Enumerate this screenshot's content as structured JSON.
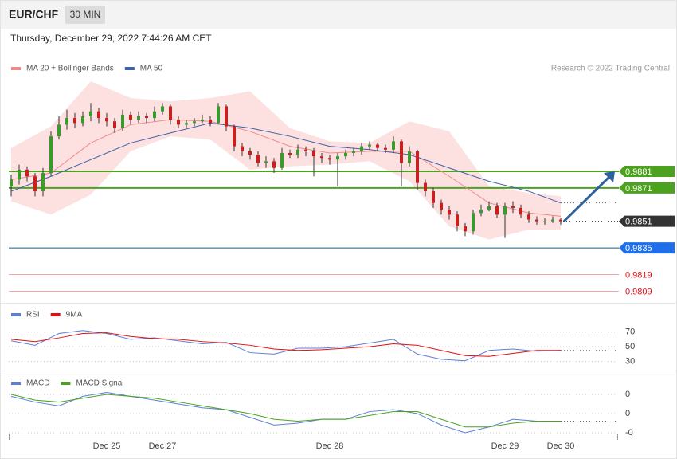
{
  "header": {
    "symbol": "EUR/CHF",
    "interval": "30 MIN",
    "timestamp": "Thursday, December 29, 2022 7:44:26 AM CET"
  },
  "chart_data": [
    {
      "type": "candlestick",
      "source": "Research © 2022 Trading Central",
      "categories": [
        null,
        null,
        null,
        null,
        null,
        null,
        null,
        null,
        null,
        null,
        null,
        null,
        "Dec 25",
        null,
        null,
        null,
        null,
        null,
        null,
        "Dec 27",
        null,
        null,
        null,
        null,
        null,
        null,
        null,
        null,
        null,
        null,
        null,
        null,
        null,
        null,
        null,
        null,
        null,
        null,
        null,
        null,
        "Dec 28",
        null,
        null,
        null,
        null,
        null,
        null,
        null,
        null,
        null,
        null,
        null,
        null,
        null,
        null,
        null,
        null,
        null,
        null,
        null,
        null,
        null,
        "Dec 29",
        null,
        null,
        null,
        null,
        null,
        null,
        "Dec 30"
      ],
      "open": [
        0.9872,
        0.9876,
        0.9882,
        0.9878,
        0.9869,
        0.988,
        0.9902,
        0.9909,
        0.9913,
        0.991,
        0.9914,
        0.9917,
        0.9913,
        0.9911,
        0.9907,
        0.9915,
        0.9912,
        0.9914,
        0.9913,
        0.9917,
        0.992,
        0.9912,
        0.9909,
        0.991,
        0.9911,
        0.9912,
        0.991,
        0.992,
        0.9908,
        0.9896,
        0.9893,
        0.9891,
        0.9886,
        0.9887,
        0.9883,
        0.9892,
        0.9891,
        0.9894,
        0.9893,
        0.989,
        0.9889,
        0.9888,
        0.989,
        0.9892,
        0.9893,
        0.9896,
        0.9897,
        0.9895,
        0.9894,
        0.9899,
        0.9886,
        0.9893,
        0.9874,
        0.9869,
        0.9862,
        0.9858,
        0.9855,
        0.9848,
        0.9845,
        0.9856,
        0.9858,
        0.986,
        0.9855,
        0.986,
        0.9859,
        0.9855,
        0.9852,
        0.9851,
        0.9851,
        0.9852
      ],
      "high": [
        0.9879,
        0.9885,
        0.9884,
        0.988,
        0.9883,
        0.9905,
        0.9914,
        0.9918,
        0.9916,
        0.9917,
        0.9922,
        0.9919,
        0.9916,
        0.9913,
        0.9918,
        0.9917,
        0.9917,
        0.9916,
        0.992,
        0.9922,
        0.9921,
        0.9914,
        0.9912,
        0.9913,
        0.9915,
        0.9914,
        0.9922,
        0.9921,
        0.9909,
        0.9898,
        0.9895,
        0.9893,
        0.989,
        0.9889,
        0.9895,
        0.9894,
        0.9897,
        0.9896,
        0.9895,
        0.9892,
        0.9891,
        0.9892,
        0.9894,
        0.9895,
        0.9898,
        0.9899,
        0.9898,
        0.9897,
        0.9902,
        0.99,
        0.9896,
        0.9894,
        0.9876,
        0.9871,
        0.9864,
        0.986,
        0.9857,
        0.985,
        0.9858,
        0.9861,
        0.9863,
        0.9862,
        0.9862,
        0.9863,
        0.9861,
        0.9857,
        0.9854,
        0.9853,
        0.9854,
        0.9853
      ],
      "low": [
        0.9866,
        0.9873,
        0.9875,
        0.9866,
        0.9866,
        0.9878,
        0.99,
        0.9906,
        0.9907,
        0.9908,
        0.9911,
        0.991,
        0.9908,
        0.9904,
        0.9905,
        0.9909,
        0.991,
        0.991,
        0.9911,
        0.9915,
        0.9909,
        0.9907,
        0.9907,
        0.9908,
        0.991,
        0.9908,
        0.9909,
        0.9905,
        0.9893,
        0.989,
        0.9888,
        0.9884,
        0.9883,
        0.988,
        0.9882,
        0.9889,
        0.9889,
        0.989,
        0.9878,
        0.9886,
        0.9885,
        0.9872,
        0.9888,
        0.989,
        0.9891,
        0.9894,
        0.9893,
        0.9892,
        0.9892,
        0.9872,
        0.9884,
        0.987,
        0.9866,
        0.9859,
        0.9855,
        0.9852,
        0.9845,
        0.9842,
        0.9843,
        0.9854,
        0.9857,
        0.9853,
        0.9841,
        0.9856,
        0.9853,
        0.985,
        0.9849,
        0.9849,
        0.985,
        0.9849
      ],
      "close": [
        0.9876,
        0.9882,
        0.9878,
        0.9869,
        0.988,
        0.9902,
        0.9909,
        0.9913,
        0.991,
        0.9914,
        0.9917,
        0.9913,
        0.9911,
        0.9907,
        0.9915,
        0.9912,
        0.9914,
        0.9913,
        0.9917,
        0.992,
        0.9912,
        0.9909,
        0.991,
        0.9911,
        0.9912,
        0.991,
        0.992,
        0.9908,
        0.9896,
        0.9893,
        0.9891,
        0.9886,
        0.9887,
        0.9883,
        0.9892,
        0.9891,
        0.9894,
        0.9893,
        0.989,
        0.9889,
        0.9888,
        0.989,
        0.9892,
        0.9893,
        0.9896,
        0.9897,
        0.9895,
        0.9894,
        0.9899,
        0.9886,
        0.9893,
        0.9874,
        0.9869,
        0.9862,
        0.9858,
        0.9855,
        0.9848,
        0.9845,
        0.9856,
        0.9858,
        0.986,
        0.9855,
        0.986,
        0.9859,
        0.9855,
        0.9852,
        0.9851,
        0.9851,
        0.9852,
        0.9851
      ],
      "up_color": "#3a9a2e",
      "down_color": "#c8201e",
      "series": [
        {
          "name": "MA 20 + Bollinger Bands",
          "color": "#f08a8a",
          "band_color": "#fde1e1",
          "x": [
            0,
            5,
            10,
            15,
            20,
            25,
            30,
            35,
            40,
            45,
            50,
            55,
            60,
            65,
            69
          ],
          "values": [
            0.9876,
            0.988,
            0.9898,
            0.9909,
            0.9912,
            0.9911,
            0.9905,
            0.9896,
            0.9892,
            0.9893,
            0.9893,
            0.9878,
            0.9862,
            0.9856,
            0.9854
          ],
          "upper": [
            0.9895,
            0.9908,
            0.9935,
            0.9925,
            0.9923,
            0.9925,
            0.9929,
            0.9907,
            0.9899,
            0.9898,
            0.9911,
            0.9905,
            0.9872,
            0.9868,
            0.9866
          ],
          "lower": [
            0.9863,
            0.9855,
            0.9867,
            0.9893,
            0.9902,
            0.99,
            0.9882,
            0.9884,
            0.9885,
            0.9887,
            0.9875,
            0.9848,
            0.984,
            0.9846,
            0.9846
          ]
        },
        {
          "name": "MA 50",
          "color": "#3d62a6",
          "x": [
            0,
            5,
            10,
            15,
            20,
            25,
            30,
            35,
            40,
            45,
            50,
            55,
            60,
            65,
            69
          ],
          "values": [
            0.9869,
            0.9878,
            0.9888,
            0.9898,
            0.9904,
            0.991,
            0.9907,
            0.9902,
            0.9896,
            0.9894,
            0.9891,
            0.9883,
            0.9875,
            0.9869,
            0.9862
          ]
        }
      ],
      "levels": [
        {
          "value": 0.9881,
          "color": "#4ca21f",
          "line_color": "#4ca21f",
          "tag": true
        },
        {
          "value": 0.9871,
          "color": "#4ca21f",
          "line_color": "#4ca21f",
          "tag": true
        },
        {
          "value": 0.9851,
          "color": "#333333",
          "line_color": "#333333",
          "tag": true,
          "dotted": true
        },
        {
          "value": 0.9835,
          "color": "#1f6fe8",
          "line_color": "#1d5c86",
          "tag": true
        },
        {
          "value": 0.9819,
          "color": "#e01010",
          "line_color": "#f2a4a4",
          "tag": false
        },
        {
          "value": 0.9809,
          "color": "#e01010",
          "line_color": "#f2a4a4",
          "tag": false
        }
      ],
      "ylim": [
        0.9803,
        0.9936
      ]
    },
    {
      "type": "line",
      "series": [
        {
          "name": "RSI",
          "color": "#5b80d8",
          "x": [
            0,
            3,
            6,
            9,
            12,
            15,
            18,
            21,
            24,
            27,
            30,
            33,
            36,
            39,
            42,
            45,
            48,
            51,
            54,
            57,
            60,
            63,
            66,
            69
          ],
          "values": [
            58,
            52,
            68,
            72,
            68,
            60,
            62,
            58,
            54,
            56,
            42,
            40,
            48,
            48,
            50,
            55,
            60,
            40,
            33,
            31,
            45,
            47,
            44,
            45
          ]
        },
        {
          "name": "9MA",
          "color": "#e01010",
          "x": [
            0,
            3,
            6,
            9,
            12,
            15,
            18,
            21,
            24,
            27,
            30,
            33,
            36,
            39,
            42,
            45,
            48,
            51,
            54,
            57,
            60,
            63,
            66,
            69
          ],
          "values": [
            60,
            57,
            62,
            68,
            69,
            64,
            61,
            60,
            57,
            55,
            52,
            47,
            45,
            46,
            48,
            50,
            54,
            52,
            45,
            38,
            37,
            41,
            45,
            45
          ]
        }
      ],
      "ylim": [
        21,
        88
      ],
      "yticks": [
        70,
        50,
        30
      ]
    },
    {
      "type": "line",
      "series": [
        {
          "name": "MACD",
          "color": "#5b80d8",
          "x": [
            0,
            3,
            6,
            9,
            12,
            15,
            18,
            21,
            24,
            27,
            30,
            33,
            36,
            39,
            42,
            45,
            48,
            51,
            54,
            57,
            60,
            63,
            66,
            69
          ],
          "values": [
            0.0009,
            0.0006,
            0.0004,
            0.0009,
            0.0011,
            0.0009,
            0.0007,
            0.0005,
            0.0003,
            0.0002,
            -0.0002,
            -0.0006,
            -0.0005,
            -0.0003,
            -0.0003,
            0.0001,
            0.0002,
            0,
            -0.0006,
            -0.001,
            -0.0007,
            -0.0003,
            -0.0004,
            -0.0004
          ]
        },
        {
          "name": "MACD Signal",
          "color": "#4ca21f",
          "x": [
            0,
            3,
            6,
            9,
            12,
            15,
            18,
            21,
            24,
            27,
            30,
            33,
            36,
            39,
            42,
            45,
            48,
            51,
            54,
            57,
            60,
            63,
            66,
            69
          ],
          "values": [
            0.001,
            0.0007,
            0.0006,
            0.0008,
            0.001,
            0.0009,
            0.0008,
            0.0006,
            0.0004,
            0.0002,
            0,
            -0.0003,
            -0.0004,
            -0.0003,
            -0.0003,
            -0.0001,
            0.0001,
            0.0001,
            -0.0003,
            -0.0007,
            -0.0007,
            -0.0005,
            -0.0004,
            -0.0004
          ]
        }
      ],
      "ylim": [
        -0.00121,
        0.00204
      ],
      "yticks": [
        {
          "value": 0.001,
          "label": "0"
        },
        0,
        {
          "value": -0.001,
          "label": "-0"
        }
      ]
    }
  ]
}
